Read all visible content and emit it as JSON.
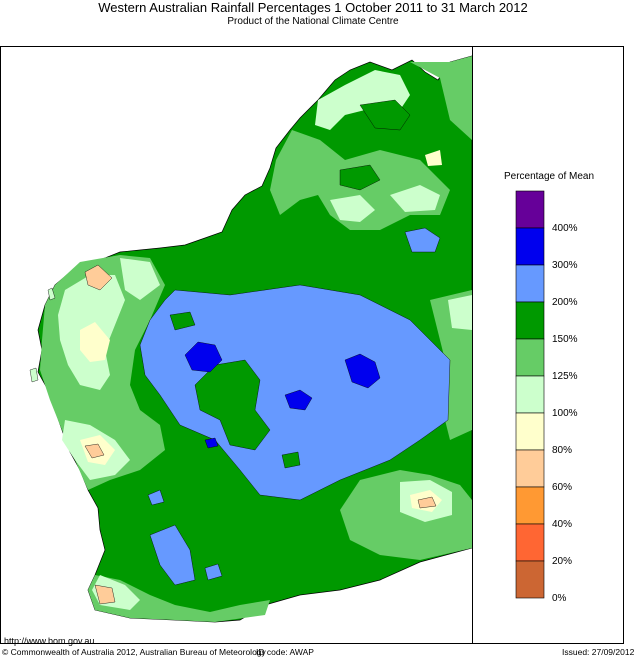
{
  "title": "Western Australian Rainfall Percentages 1 October 2011 to 31 March 2012",
  "subtitle": "Product of the National Climate Centre",
  "legend": {
    "title": "Percentage of Mean",
    "items": [
      {
        "label": "400%",
        "color": "#660099"
      },
      {
        "label": "300%",
        "color": "#0000ee"
      },
      {
        "label": "200%",
        "color": "#6699ff"
      },
      {
        "label": "150%",
        "color": "#009900"
      },
      {
        "label": "125%",
        "color": "#66cc66"
      },
      {
        "label": "100%",
        "color": "#ccffcc"
      },
      {
        "label": "80%",
        "color": "#ffffcc"
      },
      {
        "label": "60%",
        "color": "#ffcc99"
      },
      {
        "label": "40%",
        "color": "#ff9933"
      },
      {
        "label": "20%",
        "color": "#ff6633"
      },
      {
        "label": "0%",
        "color": "#cc6633"
      }
    ]
  },
  "footer": {
    "url": "http://www.bom.gov.au",
    "copyright": "© Commonwealth of Australia 2012, Australian Bureau of Meteorology",
    "id_code": "ID code: AWAP",
    "issued": "Issued: 27/09/2012"
  }
}
